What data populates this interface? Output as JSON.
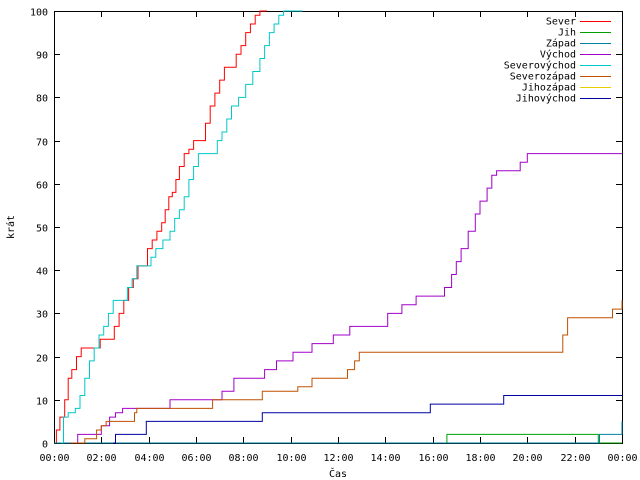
{
  "chart_data": {
    "type": "line",
    "title": "",
    "xlabel": "Čas",
    "ylabel": "krát",
    "xlim": [
      0,
      24
    ],
    "ylim": [
      0,
      100
    ],
    "x_ticks": [
      {
        "value": 0,
        "label": "00:00"
      },
      {
        "value": 2,
        "label": "02:00"
      },
      {
        "value": 4,
        "label": "04:00"
      },
      {
        "value": 6,
        "label": "06:00"
      },
      {
        "value": 8,
        "label": "08:00"
      },
      {
        "value": 10,
        "label": "10:00"
      },
      {
        "value": 12,
        "label": "12:00"
      },
      {
        "value": 14,
        "label": "14:00"
      },
      {
        "value": 16,
        "label": "16:00"
      },
      {
        "value": 18,
        "label": "18:00"
      },
      {
        "value": 20,
        "label": "20:00"
      },
      {
        "value": 22,
        "label": "22:00"
      },
      {
        "value": 24,
        "label": "00:00"
      }
    ],
    "y_ticks": [
      {
        "value": 0,
        "label": "0"
      },
      {
        "value": 10,
        "label": "10"
      },
      {
        "value": 20,
        "label": "20"
      },
      {
        "value": 30,
        "label": "30"
      },
      {
        "value": 40,
        "label": "40"
      },
      {
        "value": 50,
        "label": "50"
      },
      {
        "value": 60,
        "label": "60"
      },
      {
        "value": 70,
        "label": "70"
      },
      {
        "value": 80,
        "label": "80"
      },
      {
        "value": 90,
        "label": "90"
      },
      {
        "value": 100,
        "label": "100"
      }
    ],
    "legend_position": "top-right",
    "grid": false,
    "step": true,
    "series": [
      {
        "name": "Sever",
        "color": "#ff0000",
        "points": [
          [
            0.0,
            0
          ],
          [
            0.1,
            3
          ],
          [
            0.25,
            6
          ],
          [
            0.45,
            10
          ],
          [
            0.6,
            15
          ],
          [
            0.75,
            17
          ],
          [
            0.95,
            20
          ],
          [
            1.15,
            22
          ],
          [
            1.6,
            22
          ],
          [
            1.95,
            24
          ],
          [
            2.3,
            24
          ],
          [
            2.55,
            27
          ],
          [
            2.75,
            30
          ],
          [
            2.95,
            33
          ],
          [
            3.15,
            36
          ],
          [
            3.35,
            38
          ],
          [
            3.55,
            41
          ],
          [
            3.75,
            41
          ],
          [
            3.95,
            45
          ],
          [
            4.15,
            47
          ],
          [
            4.35,
            49
          ],
          [
            4.55,
            51
          ],
          [
            4.7,
            54
          ],
          [
            4.85,
            57
          ],
          [
            5.0,
            58
          ],
          [
            5.15,
            61
          ],
          [
            5.3,
            64
          ],
          [
            5.5,
            67
          ],
          [
            5.7,
            68
          ],
          [
            5.9,
            70
          ],
          [
            6.2,
            70
          ],
          [
            6.4,
            74
          ],
          [
            6.6,
            78
          ],
          [
            6.8,
            81
          ],
          [
            7.0,
            84
          ],
          [
            7.2,
            87
          ],
          [
            7.5,
            87
          ],
          [
            7.7,
            90
          ],
          [
            7.9,
            92
          ],
          [
            8.1,
            95
          ],
          [
            8.3,
            97
          ],
          [
            8.5,
            99
          ],
          [
            8.7,
            100
          ],
          [
            9.0,
            100
          ]
        ]
      },
      {
        "name": "Jih",
        "color": "#00a000",
        "points": [
          [
            0,
            0
          ],
          [
            16.5,
            0
          ],
          [
            16.6,
            2
          ],
          [
            22.9,
            2
          ],
          [
            23.0,
            0
          ],
          [
            24,
            0
          ]
        ]
      },
      {
        "name": "Západ",
        "color": "#0080a0",
        "points": [
          [
            0,
            0
          ],
          [
            22.9,
            0
          ],
          [
            23.05,
            2
          ],
          [
            23.9,
            2
          ],
          [
            24.0,
            5
          ]
        ]
      },
      {
        "name": "Východ",
        "color": "#a000c8",
        "points": [
          [
            0.9,
            0
          ],
          [
            1.0,
            2
          ],
          [
            1.9,
            2
          ],
          [
            2.0,
            4
          ],
          [
            2.2,
            4
          ],
          [
            2.35,
            6
          ],
          [
            2.6,
            7
          ],
          [
            2.9,
            8
          ],
          [
            4.8,
            8
          ],
          [
            4.9,
            10
          ],
          [
            7.0,
            10
          ],
          [
            7.1,
            12
          ],
          [
            7.4,
            12
          ],
          [
            7.6,
            15
          ],
          [
            8.7,
            15
          ],
          [
            8.9,
            17
          ],
          [
            9.2,
            17
          ],
          [
            9.4,
            19
          ],
          [
            9.9,
            19
          ],
          [
            10.1,
            21
          ],
          [
            10.7,
            21
          ],
          [
            10.9,
            23
          ],
          [
            11.6,
            23
          ],
          [
            11.8,
            25
          ],
          [
            12.3,
            25
          ],
          [
            12.5,
            27
          ],
          [
            13.9,
            27
          ],
          [
            14.1,
            30
          ],
          [
            14.5,
            30
          ],
          [
            14.7,
            32
          ],
          [
            15.1,
            32
          ],
          [
            15.3,
            34
          ],
          [
            16.3,
            34
          ],
          [
            16.5,
            36
          ],
          [
            16.8,
            39
          ],
          [
            17.0,
            42
          ],
          [
            17.2,
            45
          ],
          [
            17.5,
            49
          ],
          [
            17.8,
            53
          ],
          [
            18.0,
            56
          ],
          [
            18.3,
            59
          ],
          [
            18.5,
            62
          ],
          [
            18.7,
            63
          ],
          [
            19.5,
            63
          ],
          [
            19.7,
            65
          ],
          [
            20.0,
            67
          ],
          [
            24.0,
            67
          ]
        ]
      },
      {
        "name": "Severovýchod",
        "color": "#00c8c8",
        "points": [
          [
            0.3,
            0
          ],
          [
            0.4,
            6
          ],
          [
            0.6,
            7
          ],
          [
            0.9,
            8
          ],
          [
            1.1,
            11
          ],
          [
            1.3,
            15
          ],
          [
            1.5,
            19
          ],
          [
            1.7,
            22
          ],
          [
            1.9,
            25
          ],
          [
            2.1,
            27
          ],
          [
            2.3,
            30
          ],
          [
            2.5,
            33
          ],
          [
            2.9,
            33
          ],
          [
            3.1,
            36
          ],
          [
            3.3,
            38
          ],
          [
            3.5,
            41
          ],
          [
            3.9,
            41
          ],
          [
            4.1,
            43
          ],
          [
            4.3,
            45
          ],
          [
            4.6,
            47
          ],
          [
            4.9,
            49
          ],
          [
            5.1,
            52
          ],
          [
            5.3,
            54
          ],
          [
            5.5,
            57
          ],
          [
            5.7,
            61
          ],
          [
            5.9,
            64
          ],
          [
            6.1,
            67
          ],
          [
            6.7,
            67
          ],
          [
            6.9,
            70
          ],
          [
            7.1,
            72
          ],
          [
            7.3,
            75
          ],
          [
            7.5,
            78
          ],
          [
            7.8,
            80
          ],
          [
            8.1,
            83
          ],
          [
            8.4,
            86
          ],
          [
            8.7,
            89
          ],
          [
            8.9,
            92
          ],
          [
            9.1,
            95
          ],
          [
            9.3,
            97
          ],
          [
            9.5,
            99
          ],
          [
            9.7,
            100
          ],
          [
            10.5,
            100
          ]
        ]
      },
      {
        "name": "Severozápad",
        "color": "#c05000",
        "points": [
          [
            0.7,
            0
          ],
          [
            1.3,
            1
          ],
          [
            1.8,
            3
          ],
          [
            2.0,
            4
          ],
          [
            2.2,
            5
          ],
          [
            3.2,
            5
          ],
          [
            3.4,
            7
          ],
          [
            3.5,
            8
          ],
          [
            6.6,
            8
          ],
          [
            6.7,
            10
          ],
          [
            8.7,
            10
          ],
          [
            8.8,
            12
          ],
          [
            10.2,
            12
          ],
          [
            10.3,
            13
          ],
          [
            10.8,
            13
          ],
          [
            10.9,
            15
          ],
          [
            12.3,
            15
          ],
          [
            12.4,
            17
          ],
          [
            12.7,
            19
          ],
          [
            12.9,
            21
          ],
          [
            21.3,
            21
          ],
          [
            21.5,
            25
          ],
          [
            21.7,
            29
          ],
          [
            23.5,
            29
          ],
          [
            23.6,
            31
          ],
          [
            23.9,
            31
          ],
          [
            24.0,
            33
          ]
        ]
      },
      {
        "name": "Jihozápad",
        "color": "#e8d000",
        "points": []
      },
      {
        "name": "Jihovýchod",
        "color": "#0000a0",
        "points": [
          [
            2.5,
            0
          ],
          [
            2.6,
            2
          ],
          [
            3.8,
            2
          ],
          [
            3.9,
            5
          ],
          [
            8.7,
            5
          ],
          [
            8.8,
            7
          ],
          [
            15.8,
            7
          ],
          [
            15.9,
            9
          ],
          [
            18.9,
            9
          ],
          [
            19.0,
            11
          ],
          [
            24.0,
            11
          ]
        ]
      }
    ]
  }
}
